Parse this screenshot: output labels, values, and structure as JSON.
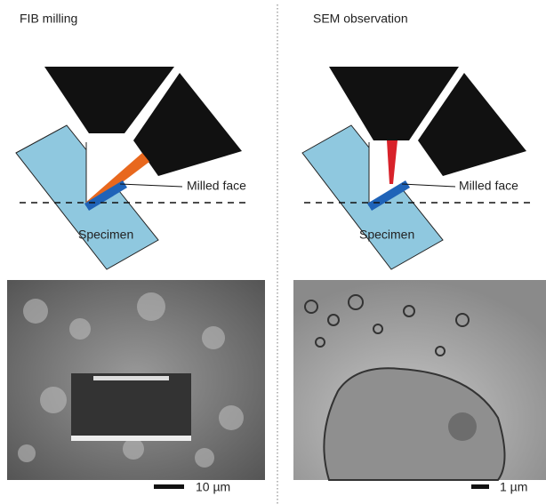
{
  "panels": [
    {
      "title": "FIB milling",
      "face_label": "Milled face",
      "specimen_label": "Specimen",
      "scale_label": "10 µm"
    },
    {
      "title": "SEM observation",
      "face_label": "Milled face",
      "specimen_label": "Specimen",
      "scale_label": "1 µm"
    }
  ]
}
